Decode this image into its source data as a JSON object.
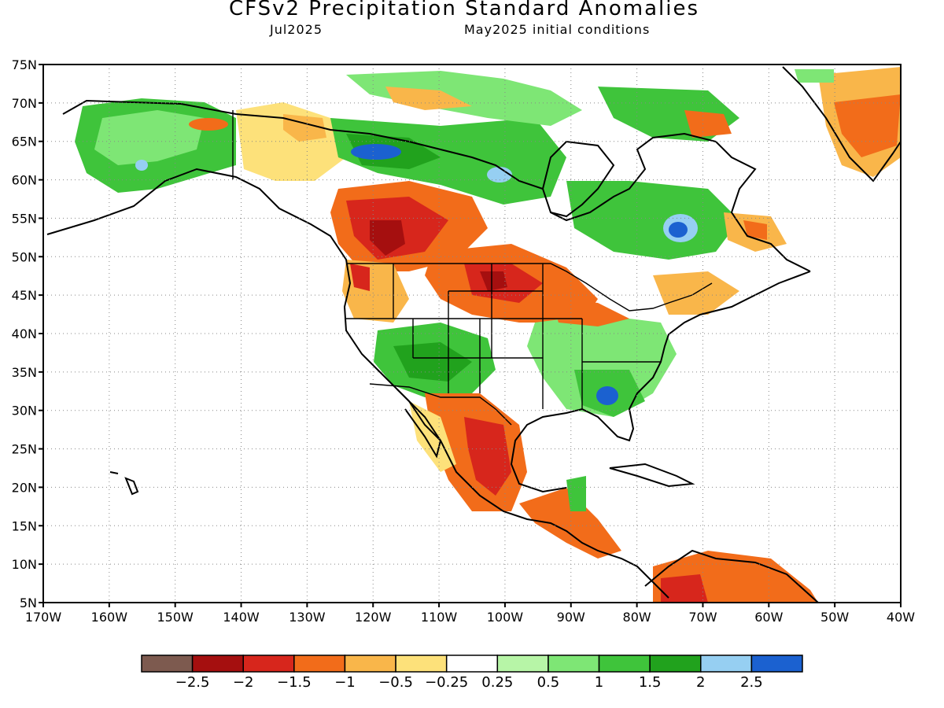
{
  "title": "CFSv2 Precipitation Standard Anomalies",
  "subtitle_left": "Jul2025",
  "subtitle_right": "May2025 initial conditions",
  "lat_labels": [
    "75N",
    "70N",
    "65N",
    "60N",
    "55N",
    "50N",
    "45N",
    "40N",
    "35N",
    "30N",
    "25N",
    "20N",
    "15N",
    "10N",
    "5N"
  ],
  "lon_labels": [
    "170W",
    "160W",
    "150W",
    "140W",
    "130W",
    "120W",
    "110W",
    "100W",
    "90W",
    "80W",
    "70W",
    "60W",
    "50W",
    "40W"
  ],
  "map_extent": {
    "lon_min": -170,
    "lon_max": -40,
    "lat_min": 5,
    "lat_max": 75
  },
  "colorbar": {
    "colors": [
      "#7d5a4f",
      "#a50f0f",
      "#d7261c",
      "#f26c1a",
      "#f9b64a",
      "#fde17a",
      "#ffffff",
      "#b7f5a7",
      "#7ee675",
      "#3fc43b",
      "#21a21d",
      "#96cff2",
      "#1b61d0"
    ],
    "labels": [
      "-2.5",
      "-2",
      "-1.5",
      "-1",
      "-0.5",
      "-0.25",
      "0.25",
      "0.5",
      "1",
      "1.5",
      "2",
      "2.5"
    ]
  },
  "colors": {
    "strong_dry": "#a50f0f",
    "dry": "#d7261c",
    "moderate_dry": "#f26c1a",
    "slight_dry": "#f9b64a",
    "near_normal_dry": "#fde17a",
    "near_normal_wet": "#b7f5a7",
    "slight_wet": "#7ee675",
    "wet": "#3fc43b",
    "strong_wet": "#1b61d0",
    "very_wet_light": "#96cff2"
  }
}
